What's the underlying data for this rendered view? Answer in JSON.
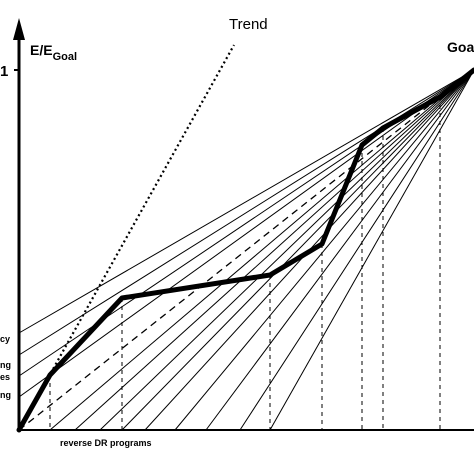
{
  "diagram": {
    "y_axis_label": "E/E",
    "y_axis_label_sub": "Goal",
    "y_tick_label": "1",
    "goal_label": "Goa",
    "trend_label": "Trend",
    "x_annotation": "reverse DR programs",
    "left_labels": [
      "cy",
      "ng",
      "es",
      "ng"
    ]
  }
}
